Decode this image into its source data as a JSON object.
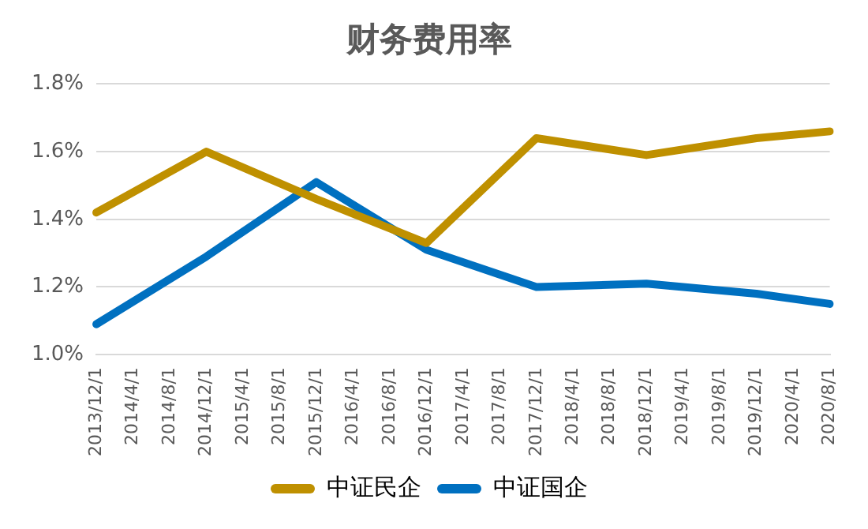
{
  "chart_data": {
    "type": "line",
    "title": "财务费用率",
    "categories": [
      "2013/12/1",
      "2014/4/1",
      "2014/8/1",
      "2014/12/1",
      "2015/4/1",
      "2015/8/1",
      "2015/12/1",
      "2016/4/1",
      "2016/8/1",
      "2016/12/1",
      "2017/4/1",
      "2017/8/1",
      "2017/12/1",
      "2018/4/1",
      "2018/8/1",
      "2018/12/1",
      "2019/4/1",
      "2019/8/1",
      "2019/12/1",
      "2020/4/1",
      "2020/8/1"
    ],
    "series": [
      {
        "name": "中证民企",
        "color": "#bf9000",
        "values": [
          1.42,
          null,
          null,
          1.6,
          null,
          null,
          1.46,
          null,
          null,
          1.33,
          null,
          null,
          1.64,
          null,
          null,
          1.59,
          null,
          null,
          1.64,
          null,
          1.66
        ]
      },
      {
        "name": "中证国企",
        "color": "#0070c0",
        "values": [
          1.09,
          null,
          null,
          1.29,
          null,
          null,
          1.51,
          null,
          null,
          1.31,
          null,
          null,
          1.2,
          null,
          null,
          1.21,
          null,
          null,
          1.18,
          null,
          1.15
        ]
      }
    ],
    "ylim": [
      1.0,
      1.8
    ],
    "yticks": [
      {
        "value": 1.0,
        "label": "1.0%"
      },
      {
        "value": 1.2,
        "label": "1.2%"
      },
      {
        "value": 1.4,
        "label": "1.4%"
      },
      {
        "value": 1.6,
        "label": "1.6%"
      },
      {
        "value": 1.8,
        "label": "1.8%"
      }
    ],
    "grid": "y",
    "legend": "bottom",
    "marker": "none",
    "line_style": "solid"
  }
}
